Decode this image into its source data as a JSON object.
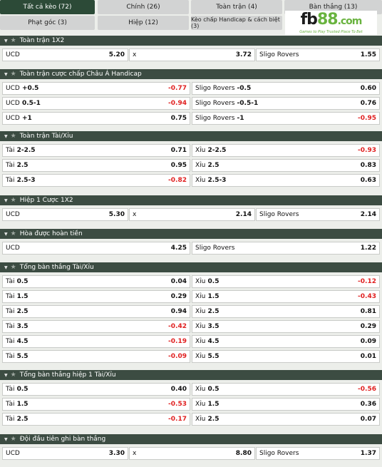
{
  "tabs": [
    {
      "label": "Tất cả kèo (72)",
      "active": true
    },
    {
      "label": "Chính (26)",
      "active": false
    },
    {
      "label": "Toàn trận (4)",
      "active": false
    },
    {
      "label": "Bàn thắng (13)",
      "active": false
    },
    {
      "label": "Phạt góc (3)",
      "active": false
    },
    {
      "label": "Hiệp (12)",
      "active": false
    },
    {
      "label": "Kèo chấp Handicap & cách biệt (3)",
      "active": false
    }
  ],
  "logo": {
    "text_main": "fb",
    "text_num": "88",
    "text_dom": ".com",
    "tagline": "Games to Play Trusted Place To Bet"
  },
  "sections": [
    {
      "title": "Toàn trận 1X2",
      "cols": 3,
      "rows": [
        [
          {
            "label": "UCD",
            "value": "5.20"
          },
          {
            "label": "x",
            "value": "3.72"
          },
          {
            "label": "Sligo Rovers",
            "value": "1.55"
          }
        ]
      ]
    },
    {
      "title": "Toàn trận cược chấp Châu Á Handicap",
      "cols": 2,
      "rows": [
        [
          {
            "label": "UCD",
            "line": "+0.5",
            "value": "-0.77"
          },
          {
            "label": "Sligo Rovers",
            "line": "-0.5",
            "value": "0.60"
          }
        ],
        [
          {
            "label": "UCD",
            "line": "0.5-1",
            "value": "-0.94"
          },
          {
            "label": "Sligo Rovers",
            "line": "-0.5-1",
            "value": "0.76"
          }
        ],
        [
          {
            "label": "UCD",
            "line": "+1",
            "value": "0.75"
          },
          {
            "label": "Sligo Rovers",
            "line": "-1",
            "value": "-0.95"
          }
        ]
      ]
    },
    {
      "title": "Toàn trận Tài/Xỉu",
      "cols": 2,
      "rows": [
        [
          {
            "label": "Tài",
            "line": "2-2.5",
            "value": "0.71"
          },
          {
            "label": "Xỉu",
            "line": "2-2.5",
            "value": "-0.93"
          }
        ],
        [
          {
            "label": "Tài",
            "line": "2.5",
            "value": "0.95"
          },
          {
            "label": "Xỉu",
            "line": "2.5",
            "value": "0.83"
          }
        ],
        [
          {
            "label": "Tài",
            "line": "2.5-3",
            "value": "-0.82"
          },
          {
            "label": "Xỉu",
            "line": "2.5-3",
            "value": "0.63"
          }
        ]
      ]
    },
    {
      "title": "Hiệp 1 Cược 1X2",
      "cols": 3,
      "rows": [
        [
          {
            "label": "UCD",
            "value": "5.30"
          },
          {
            "label": "x",
            "value": "2.14"
          },
          {
            "label": "Sligo Rovers",
            "value": "2.14"
          }
        ]
      ]
    },
    {
      "title": "Hòa được hoàn tiền",
      "cols": 2,
      "rows": [
        [
          {
            "label": "UCD",
            "value": "4.25"
          },
          {
            "label": "Sligo Rovers",
            "value": "1.22"
          }
        ]
      ]
    },
    {
      "title": "Tổng bàn thắng Tài/Xỉu",
      "cols": 2,
      "rows": [
        [
          {
            "label": "Tài",
            "line": "0.5",
            "value": "0.04"
          },
          {
            "label": "Xỉu",
            "line": "0.5",
            "value": "-0.12"
          }
        ],
        [
          {
            "label": "Tài",
            "line": "1.5",
            "value": "0.29"
          },
          {
            "label": "Xỉu",
            "line": "1.5",
            "value": "-0.43"
          }
        ],
        [
          {
            "label": "Tài",
            "line": "2.5",
            "value": "0.94"
          },
          {
            "label": "Xỉu",
            "line": "2.5",
            "value": "0.81"
          }
        ],
        [
          {
            "label": "Tài",
            "line": "3.5",
            "value": "-0.42"
          },
          {
            "label": "Xỉu",
            "line": "3.5",
            "value": "0.29"
          }
        ],
        [
          {
            "label": "Tài",
            "line": "4.5",
            "value": "-0.19"
          },
          {
            "label": "Xỉu",
            "line": "4.5",
            "value": "0.09"
          }
        ],
        [
          {
            "label": "Tài",
            "line": "5.5",
            "value": "-0.09"
          },
          {
            "label": "Xỉu",
            "line": "5.5",
            "value": "0.01"
          }
        ]
      ]
    },
    {
      "title": "Tổng bàn thắng hiệp 1 Tài/Xỉu",
      "cols": 2,
      "rows": [
        [
          {
            "label": "Tài",
            "line": "0.5",
            "value": "0.40"
          },
          {
            "label": "Xỉu",
            "line": "0.5",
            "value": "-0.56"
          }
        ],
        [
          {
            "label": "Tài",
            "line": "1.5",
            "value": "-0.53"
          },
          {
            "label": "Xỉu",
            "line": "1.5",
            "value": "0.36"
          }
        ],
        [
          {
            "label": "Tài",
            "line": "2.5",
            "value": "-0.17"
          },
          {
            "label": "Xỉu",
            "line": "2.5",
            "value": "0.07"
          }
        ]
      ]
    },
    {
      "title": "Đội đầu tiên ghi bàn thắng",
      "cols": 3,
      "rows": [
        [
          {
            "label": "UCD",
            "value": "3.30"
          },
          {
            "label": "x",
            "value": "8.80"
          },
          {
            "label": "Sligo Rovers",
            "value": "1.37"
          }
        ]
      ]
    }
  ],
  "colors": {
    "header_bg": "#3c4c42",
    "active_tab": "#2c4a37",
    "negative": "#e02020",
    "logo_green": "#69b33f"
  }
}
